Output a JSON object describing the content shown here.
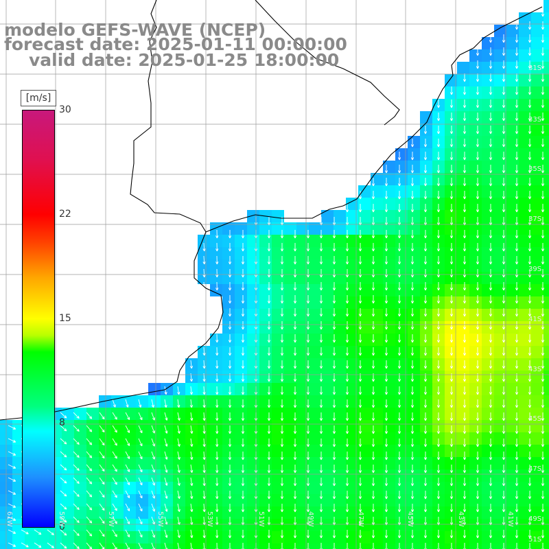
{
  "title": {
    "line1": "modelo GEFS-WAVE (NCEP)",
    "line2": "forecast date: 2025-01-11 00:00:00",
    "line3": "valid date: 2025-01-25 18:00:00"
  },
  "colorbar": {
    "unit": "[m/s]",
    "ticks": [
      "30",
      "22",
      "15",
      "8",
      "0"
    ],
    "tick_values": [
      30,
      22,
      15,
      8,
      0
    ],
    "min": 0,
    "max": 30
  },
  "grid": {
    "lat_labels": [
      "31S",
      "33S",
      "35S",
      "37S",
      "39S",
      "41S",
      "43S",
      "45S",
      "47S",
      "49S",
      "51S"
    ],
    "lon_labels": [
      "61W",
      "59W",
      "57W",
      "55W",
      "53W",
      "51W",
      "49W",
      "47W",
      "45W",
      "43W",
      "41W"
    ]
  },
  "colors": {
    "text_title": "#8a8a8a",
    "coastline": "#000000",
    "gridline": "#9a9a9a",
    "arrows": "#ffffff",
    "land": "#ffffff"
  }
}
